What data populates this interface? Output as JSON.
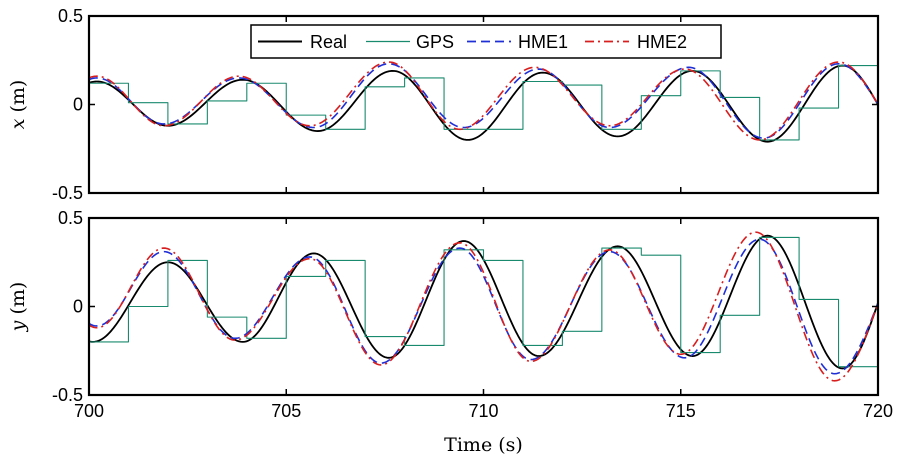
{
  "chart_data": [
    {
      "type": "line",
      "ylabel_var": "x",
      "ylabel_unit": "(m)",
      "xlabel": "",
      "xlim": [
        700,
        720
      ],
      "ylim": [
        -0.5,
        0.5
      ],
      "xticks": [
        700,
        705,
        710,
        715,
        720
      ],
      "yticks": [
        -0.5,
        0,
        0.5
      ],
      "ytick_labels": [
        "-0.5",
        "0",
        "0.5"
      ],
      "legend": {
        "placement": "top-center",
        "entries": [
          "Real",
          "GPS",
          "HME1",
          "HME2"
        ]
      },
      "series": [
        {
          "name": "Real",
          "color": "#000000",
          "style": "solid",
          "kind": "sine",
          "extrema": [
            [
              700.2,
              0.13
            ],
            [
              702.0,
              -0.12
            ],
            [
              703.9,
              0.14
            ],
            [
              705.8,
              -0.15
            ],
            [
              707.7,
              0.19
            ],
            [
              709.6,
              -0.2
            ],
            [
              711.5,
              0.18
            ],
            [
              713.4,
              -0.18
            ],
            [
              715.3,
              0.19
            ],
            [
              717.2,
              -0.21
            ],
            [
              719.1,
              0.22
            ]
          ],
          "ends": [
            [
              700,
              0.12
            ],
            [
              720,
              0.0
            ]
          ]
        },
        {
          "name": "GPS",
          "color": "#1a8a6e",
          "style": "step",
          "steps": [
            [
              700,
              0.12
            ],
            [
              701,
              0.01
            ],
            [
              702,
              -0.11
            ],
            [
              703,
              0.02
            ],
            [
              704,
              0.12
            ],
            [
              705,
              -0.06
            ],
            [
              706,
              -0.14
            ],
            [
              707,
              0.1
            ],
            [
              708,
              0.15
            ],
            [
              709,
              -0.14
            ],
            [
              710,
              -0.14
            ],
            [
              711,
              0.13
            ],
            [
              712,
              0.11
            ],
            [
              713,
              -0.14
            ],
            [
              714,
              0.05
            ],
            [
              715,
              0.19
            ],
            [
              716,
              0.04
            ],
            [
              717,
              -0.2
            ],
            [
              718,
              -0.02
            ],
            [
              719,
              0.22
            ],
            [
              720,
              0.22
            ]
          ]
        },
        {
          "name": "HME1",
          "color": "#1f2fd6",
          "style": "dashed",
          "kind": "sine",
          "extrema": [
            [
              700.2,
              0.15
            ],
            [
              701.9,
              -0.11
            ],
            [
              703.8,
              0.15
            ],
            [
              705.7,
              -0.13
            ],
            [
              707.6,
              0.23
            ],
            [
              709.5,
              -0.13
            ],
            [
              711.4,
              0.2
            ],
            [
              713.2,
              -0.13
            ],
            [
              715.2,
              0.21
            ],
            [
              717.1,
              -0.19
            ],
            [
              719.0,
              0.23
            ]
          ],
          "ends": [
            [
              700,
              0.15
            ],
            [
              720,
              0.0
            ]
          ]
        },
        {
          "name": "HME2",
          "color": "#d81f1f",
          "style": "dashdot",
          "kind": "sine",
          "extrema": [
            [
              700.2,
              0.16
            ],
            [
              701.9,
              -0.12
            ],
            [
              703.8,
              0.16
            ],
            [
              705.6,
              -0.12
            ],
            [
              707.6,
              0.24
            ],
            [
              709.4,
              -0.14
            ],
            [
              711.3,
              0.21
            ],
            [
              713.2,
              -0.12
            ],
            [
              715.1,
              0.2
            ],
            [
              717.0,
              -0.2
            ],
            [
              719.0,
              0.24
            ]
          ],
          "ends": [
            [
              700,
              0.15
            ],
            [
              720,
              0.0
            ]
          ]
        }
      ]
    },
    {
      "type": "line",
      "ylabel_var": "y",
      "ylabel_unit": "(m)",
      "xlabel": "Time (s)",
      "xlim": [
        700,
        720
      ],
      "ylim": [
        -0.5,
        0.5
      ],
      "xticks": [
        700,
        705,
        710,
        715,
        720
      ],
      "xtick_labels": [
        "700",
        "705",
        "710",
        "715",
        "720"
      ],
      "yticks": [
        -0.5,
        0,
        0.5
      ],
      "ytick_labels": [
        "-0.5",
        "0",
        "0.5"
      ],
      "series": [
        {
          "name": "Real",
          "color": "#000000",
          "style": "solid",
          "kind": "sine",
          "extrema": [
            [
              700.1,
              -0.2
            ],
            [
              702.0,
              0.25
            ],
            [
              703.9,
              -0.2
            ],
            [
              705.7,
              0.3
            ],
            [
              707.6,
              -0.29
            ],
            [
              709.5,
              0.37
            ],
            [
              711.4,
              -0.28
            ],
            [
              713.4,
              0.34
            ],
            [
              715.3,
              -0.28
            ],
            [
              717.2,
              0.4
            ],
            [
              719.1,
              -0.35
            ]
          ],
          "ends": [
            [
              700,
              -0.19
            ],
            [
              720,
              0.02
            ]
          ]
        },
        {
          "name": "GPS",
          "color": "#1a8a6e",
          "style": "step",
          "steps": [
            [
              700,
              -0.2
            ],
            [
              701,
              0.0
            ],
            [
              702,
              0.26
            ],
            [
              703,
              -0.06
            ],
            [
              704,
              -0.18
            ],
            [
              705,
              0.17
            ],
            [
              706,
              0.26
            ],
            [
              707,
              -0.17
            ],
            [
              708,
              -0.22
            ],
            [
              709,
              0.32
            ],
            [
              710,
              0.26
            ],
            [
              711,
              -0.22
            ],
            [
              712,
              -0.14
            ],
            [
              713,
              0.33
            ],
            [
              714,
              0.29
            ],
            [
              715,
              -0.26
            ],
            [
              716,
              -0.05
            ],
            [
              717,
              0.39
            ],
            [
              718,
              0.04
            ],
            [
              719,
              -0.34
            ],
            [
              720,
              -0.34
            ]
          ]
        },
        {
          "name": "HME1",
          "color": "#1f2fd6",
          "style": "dashed",
          "kind": "sine",
          "extrema": [
            [
              700.2,
              -0.11
            ],
            [
              701.9,
              0.31
            ],
            [
              703.7,
              -0.18
            ],
            [
              705.6,
              0.28
            ],
            [
              707.4,
              -0.32
            ],
            [
              709.4,
              0.33
            ],
            [
              711.2,
              -0.3
            ],
            [
              713.2,
              0.31
            ],
            [
              715.1,
              -0.29
            ],
            [
              717.0,
              0.38
            ],
            [
              718.9,
              -0.38
            ]
          ],
          "ends": [
            [
              700,
              -0.12
            ],
            [
              720,
              0.02
            ]
          ]
        },
        {
          "name": "HME2",
          "color": "#d81f1f",
          "style": "dashdot",
          "kind": "sine",
          "extrema": [
            [
              700.2,
              -0.12
            ],
            [
              701.9,
              0.33
            ],
            [
              703.7,
              -0.19
            ],
            [
              705.6,
              0.27
            ],
            [
              707.4,
              -0.33
            ],
            [
              709.4,
              0.36
            ],
            [
              711.2,
              -0.31
            ],
            [
              713.2,
              0.32
            ],
            [
              715.0,
              -0.27
            ],
            [
              716.9,
              0.42
            ],
            [
              718.9,
              -0.42
            ]
          ],
          "ends": [
            [
              700,
              -0.11
            ],
            [
              720,
              0.02
            ]
          ]
        }
      ]
    }
  ]
}
